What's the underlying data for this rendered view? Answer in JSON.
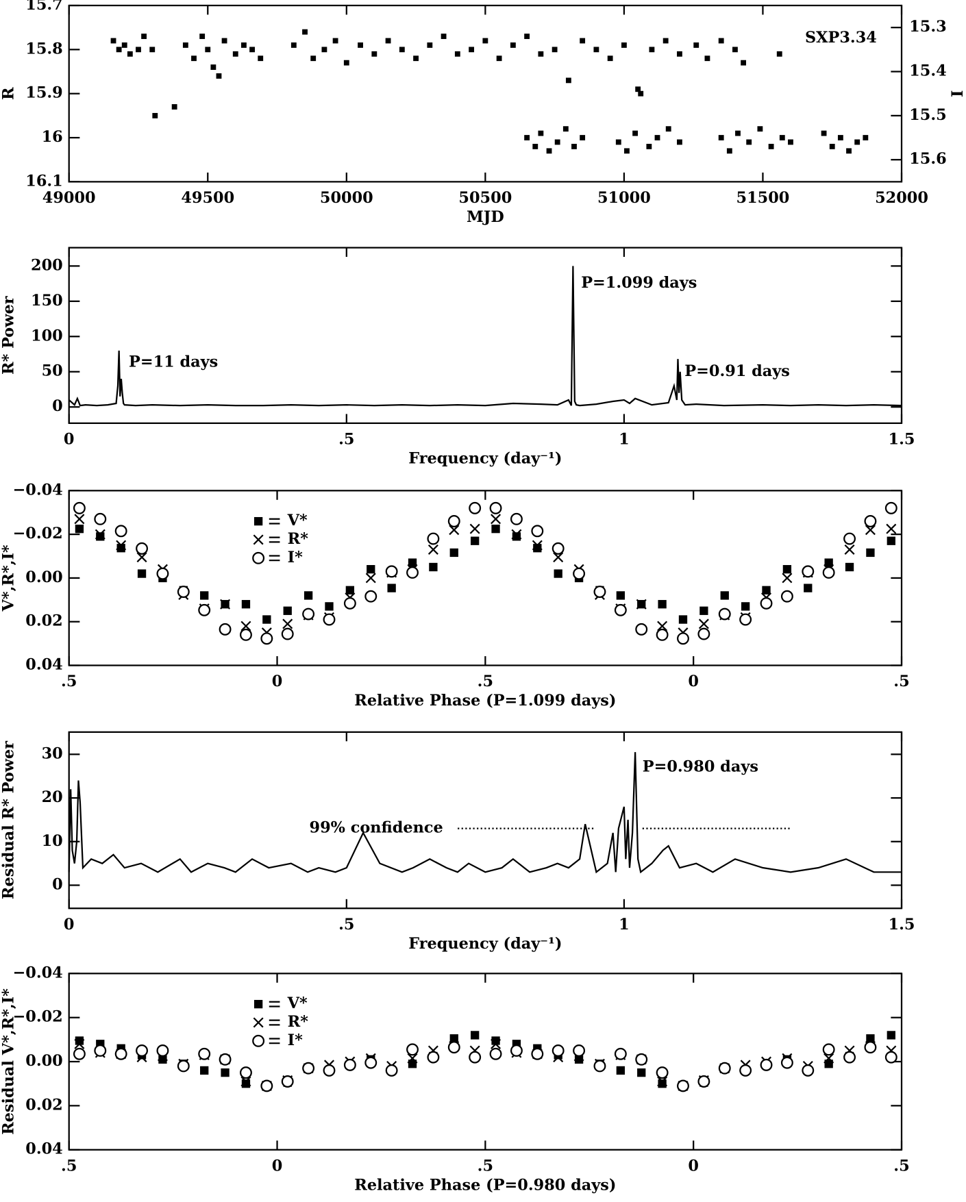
{
  "chart_data": [
    {
      "type": "scatter_time",
      "invert_y": true,
      "xlabel": "MJD",
      "ylabel": "R",
      "y2label": "I",
      "annotations": [
        "SXP3.34"
      ],
      "xlim": [
        49000,
        52000
      ],
      "xticks": [
        49000,
        49500,
        50000,
        50500,
        51000,
        51500,
        52000
      ],
      "ylim": [
        15.7,
        16.1
      ],
      "yticks": [
        15.7,
        15.8,
        15.9,
        16,
        16.1
      ],
      "y2lim": [
        15.25,
        15.65
      ],
      "y2ticks": [
        15.3,
        15.4,
        15.5,
        15.6
      ],
      "series": [
        {
          "color": "#000000",
          "marker": "square",
          "x": [
            49160,
            49180,
            49200,
            49220,
            49250,
            49270,
            49300,
            49310,
            49380,
            49420,
            49450,
            49480,
            49500,
            49520,
            49540,
            49560,
            49600,
            49630,
            49660,
            49690,
            49810,
            49850,
            49880,
            49920,
            49960,
            50000,
            50050,
            50100,
            50150,
            50200,
            50250,
            50300,
            50350,
            50400,
            50450,
            50500,
            50550,
            50600,
            50650,
            50700,
            50750,
            50800,
            50850,
            50900,
            50950,
            51000,
            51050,
            51100,
            51150,
            51200,
            51260,
            51300,
            51350,
            51400,
            51430,
            51560
          ],
          "values": [
            15.78,
            15.8,
            15.79,
            15.81,
            15.8,
            15.77,
            15.8,
            15.95,
            15.93,
            15.79,
            15.82,
            15.77,
            15.8,
            15.84,
            15.86,
            15.78,
            15.81,
            15.79,
            15.8,
            15.82,
            15.79,
            15.76,
            15.82,
            15.8,
            15.78,
            15.83,
            15.79,
            15.81,
            15.78,
            15.8,
            15.82,
            15.79,
            15.77,
            15.81,
            15.8,
            15.78,
            15.82,
            15.79,
            15.77,
            15.81,
            15.8,
            15.87,
            15.78,
            15.8,
            15.82,
            15.79,
            15.89,
            15.8,
            15.78,
            15.81,
            15.79,
            15.82,
            15.78,
            15.8,
            15.83,
            15.81
          ]
        },
        {
          "color": "#000000",
          "marker": "square",
          "axis": "y2",
          "x": [
            50650,
            50680,
            50700,
            50730,
            50760,
            50790,
            50820,
            50850,
            50980,
            51010,
            51040,
            51060,
            51090,
            51120,
            51160,
            51200,
            51350,
            51380,
            51410,
            51450,
            51490,
            51530,
            51570,
            51600,
            51720,
            51750,
            51780,
            51810,
            51840,
            51870
          ],
          "values": [
            15.55,
            15.57,
            15.54,
            15.58,
            15.56,
            15.53,
            15.57,
            15.55,
            15.56,
            15.58,
            15.54,
            15.45,
            15.57,
            15.55,
            15.53,
            15.56,
            15.55,
            15.58,
            15.54,
            15.56,
            15.53,
            15.57,
            15.55,
            15.56,
            15.54,
            15.57,
            15.55,
            15.58,
            15.56,
            15.55
          ]
        }
      ]
    },
    {
      "type": "line",
      "xlabel": "Frequency (day⁻¹)",
      "ylabel": "R* Power",
      "color": "#000000",
      "annotations": [
        "P=11 days",
        "P=1.099 days",
        "P=0.91 days"
      ],
      "xlim": [
        0,
        1.5
      ],
      "xticks": [
        0,
        {
          "value": 0.5,
          "label": ".5"
        },
        1,
        1.5
      ],
      "ylim": [
        -23,
        226
      ],
      "yticks": [
        0,
        50,
        100,
        150,
        200
      ],
      "x": [
        0,
        0.01,
        0.015,
        0.02,
        0.03,
        0.05,
        0.07,
        0.085,
        0.088,
        0.09,
        0.092,
        0.094,
        0.096,
        0.098,
        0.1,
        0.12,
        0.15,
        0.2,
        0.25,
        0.3,
        0.35,
        0.4,
        0.45,
        0.5,
        0.55,
        0.6,
        0.65,
        0.7,
        0.75,
        0.8,
        0.85,
        0.88,
        0.9,
        0.905,
        0.908,
        0.911,
        0.914,
        0.92,
        0.95,
        0.98,
        1.0,
        1.01,
        1.02,
        1.05,
        1.08,
        1.09,
        1.095,
        1.097,
        1.099,
        1.101,
        1.104,
        1.11,
        1.13,
        1.18,
        1.25,
        1.3,
        1.35,
        1.4,
        1.45,
        1.5
      ],
      "values": [
        10,
        3,
        12,
        2,
        3,
        2,
        3,
        5,
        30,
        80,
        15,
        40,
        20,
        5,
        3,
        2,
        3,
        2,
        3,
        2,
        2,
        3,
        2,
        3,
        2,
        3,
        2,
        3,
        2,
        5,
        4,
        3,
        10,
        2,
        200,
        8,
        3,
        2,
        4,
        8,
        10,
        5,
        12,
        3,
        6,
        30,
        10,
        68,
        20,
        50,
        10,
        3,
        4,
        2,
        3,
        2,
        3,
        2,
        3,
        2
      ]
    },
    {
      "type": "phase",
      "invert_y": true,
      "xlabel": "Relative Phase (P=1.099 days)",
      "ylabel": "V*,R*,I*",
      "legend": "upper left",
      "xlim": [
        -0.5,
        1.5
      ],
      "xticks": [
        {
          "value": -0.5,
          "label": ".5"
        },
        0,
        {
          "value": 0.5,
          "label": ".5"
        },
        {
          "value": 1,
          "label": "0"
        },
        {
          "value": 1.5,
          "label": ".5"
        }
      ],
      "ylim": [
        -0.04,
        0.04
      ],
      "yticks": [
        {
          "value": -0.04,
          "label": "−0.04"
        },
        {
          "value": -0.02,
          "label": "−0.02"
        },
        {
          "value": 0,
          "label": "0.00"
        },
        {
          "value": 0.02,
          "label": "0.02"
        },
        {
          "value": 0.04,
          "label": "0.04"
        }
      ],
      "x": [
        -0.475,
        -0.425,
        -0.375,
        -0.325,
        -0.275,
        -0.225,
        -0.175,
        -0.125,
        -0.075,
        -0.025,
        0.025,
        0.075,
        0.125,
        0.175,
        0.225,
        0.275,
        0.325,
        0.375,
        0.425,
        0.475,
        0.525,
        0.575,
        0.625,
        0.675,
        0.725,
        0.775,
        0.825,
        0.875,
        0.925,
        0.975,
        1.025,
        1.075,
        1.125,
        1.175,
        1.225,
        1.275,
        1.325,
        1.375,
        1.425,
        1.475
      ],
      "series": [
        {
          "name": "V*",
          "color": "#000000",
          "marker": "square",
          "values": [
            -0.0225,
            -0.019,
            -0.0137,
            -0.002,
            0,
            0.0056,
            0.008,
            0.012,
            0.012,
            0.019,
            0.015,
            0.008,
            0.013,
            0.0056,
            -0.004,
            0.0046,
            -0.007,
            -0.005,
            -0.0116,
            -0.017,
            -0.0225,
            -0.019,
            -0.0137,
            -0.002,
            0,
            0.0056,
            0.008,
            0.012,
            0.012,
            0.019,
            0.015,
            0.008,
            0.013,
            0.0056,
            -0.004,
            0.0046,
            -0.007,
            -0.005,
            -0.0116,
            -0.017
          ]
        },
        {
          "name": "R*",
          "color": "#000000",
          "marker": "x",
          "values": [
            -0.027,
            -0.02,
            -0.015,
            -0.0095,
            -0.004,
            0.0077,
            0.014,
            0.012,
            0.022,
            0.025,
            0.021,
            0.017,
            0.018,
            0.009,
            0,
            -0.0025,
            -0.004,
            -0.013,
            -0.022,
            -0.0225,
            -0.027,
            -0.02,
            -0.015,
            -0.0095,
            -0.004,
            0.0077,
            0.014,
            0.012,
            0.022,
            0.025,
            0.021,
            0.017,
            0.018,
            0.009,
            0,
            -0.0025,
            -0.004,
            -0.013,
            -0.022,
            -0.0225
          ]
        },
        {
          "name": "I*",
          "color": "#000000",
          "marker": "circle",
          "values": [
            -0.032,
            -0.027,
            -0.0215,
            -0.0135,
            -0.002,
            0.0063,
            0.0147,
            0.0235,
            0.026,
            0.0277,
            0.0256,
            0.0165,
            0.019,
            0.0116,
            0.0084,
            -0.003,
            -0.0025,
            -0.018,
            -0.026,
            -0.032,
            -0.032,
            -0.027,
            -0.0215,
            -0.0135,
            -0.002,
            0.0063,
            0.0147,
            0.0235,
            0.026,
            0.0277,
            0.0256,
            0.0165,
            0.019,
            0.0116,
            0.0084,
            -0.003,
            -0.0025,
            -0.018,
            -0.026,
            -0.032
          ]
        }
      ]
    },
    {
      "type": "line",
      "xlabel": "Frequency (day⁻¹)",
      "ylabel": "Residual R* Power",
      "color": "#000000",
      "annotations": [
        "P=0.980 days"
      ],
      "threshold": 13,
      "threshold_label": "99% confidence",
      "xlim": [
        0,
        1.5
      ],
      "xticks": [
        0,
        {
          "value": 0.5,
          "label": ".5"
        },
        1,
        1.5
      ],
      "ylim": [
        -5.3,
        35.1
      ],
      "yticks": [
        0,
        10,
        20,
        30
      ],
      "x": [
        0,
        0.003,
        0.006,
        0.01,
        0.014,
        0.017,
        0.02,
        0.025,
        0.04,
        0.06,
        0.08,
        0.1,
        0.13,
        0.16,
        0.2,
        0.22,
        0.25,
        0.28,
        0.3,
        0.33,
        0.36,
        0.4,
        0.43,
        0.45,
        0.48,
        0.5,
        0.53,
        0.56,
        0.6,
        0.62,
        0.65,
        0.68,
        0.7,
        0.72,
        0.75,
        0.78,
        0.8,
        0.83,
        0.86,
        0.88,
        0.9,
        0.92,
        0.93,
        0.95,
        0.97,
        0.98,
        0.985,
        0.99,
        1.0,
        1.003,
        1.007,
        1.01,
        1.015,
        1.02,
        1.025,
        1.03,
        1.05,
        1.07,
        1.08,
        1.1,
        1.13,
        1.16,
        1.2,
        1.25,
        1.3,
        1.35,
        1.4,
        1.45,
        1.5
      ],
      "values": [
        3,
        22,
        8,
        5,
        10,
        24,
        19,
        4,
        6,
        5,
        7,
        4,
        5,
        3,
        6,
        3,
        5,
        4,
        3,
        6,
        4,
        5,
        3,
        4,
        3,
        4,
        12,
        5,
        3,
        4,
        6,
        4,
        3,
        5,
        3,
        4,
        6,
        3,
        4,
        5,
        4,
        6,
        14,
        3,
        5,
        12,
        3,
        13,
        18,
        6,
        15,
        4,
        12,
        30.5,
        6,
        3,
        5,
        8,
        9,
        4,
        5,
        3,
        6,
        4,
        3,
        4,
        6,
        3,
        3
      ]
    },
    {
      "type": "phase",
      "invert_y": true,
      "xlabel": "Relative Phase (P=0.980 days)",
      "ylabel": "Residual V*,R*,I*",
      "legend": "upper left",
      "xlim": [
        -0.5,
        1.5
      ],
      "xticks": [
        {
          "value": -0.5,
          "label": ".5"
        },
        0,
        {
          "value": 0.5,
          "label": ".5"
        },
        {
          "value": 1,
          "label": "0"
        },
        {
          "value": 1.5,
          "label": ".5"
        }
      ],
      "ylim": [
        -0.04,
        0.04
      ],
      "yticks": [
        {
          "value": -0.04,
          "label": "−0.04"
        },
        {
          "value": -0.02,
          "label": "−0.02"
        },
        {
          "value": 0,
          "label": "0.00"
        },
        {
          "value": 0.02,
          "label": "0.02"
        },
        {
          "value": 0.04,
          "label": "0.04"
        }
      ],
      "x": [
        -0.475,
        -0.425,
        -0.375,
        -0.325,
        -0.275,
        -0.225,
        -0.175,
        -0.125,
        -0.075,
        -0.025,
        0.025,
        0.075,
        0.125,
        0.175,
        0.225,
        0.275,
        0.325,
        0.375,
        0.425,
        0.475,
        0.525,
        0.575,
        0.625,
        0.675,
        0.725,
        0.775,
        0.825,
        0.875,
        0.925,
        0.975,
        1.025,
        1.075,
        1.125,
        1.175,
        1.225,
        1.275,
        1.325,
        1.375,
        1.425,
        1.475
      ],
      "series": [
        {
          "name": "V*",
          "color": "#000000",
          "marker": "square",
          "values": [
            -0.0095,
            -0.008,
            -0.006,
            -0.003,
            -0.001,
            0.001,
            0.004,
            0.005,
            0.01,
            0.011,
            0.0095,
            0.003,
            0.004,
            0.0015,
            -0.001,
            0.004,
            0.001,
            -0.0025,
            -0.0105,
            -0.012,
            -0.0095,
            -0.008,
            -0.006,
            -0.003,
            -0.001,
            0.001,
            0.004,
            0.005,
            0.01,
            0.011,
            0.0095,
            0.003,
            0.004,
            0.0015,
            -0.001,
            0.004,
            0.001,
            -0.0025,
            -0.0105,
            -0.012
          ]
        },
        {
          "name": "R*",
          "color": "#000000",
          "marker": "x",
          "values": [
            -0.008,
            -0.004,
            -0.0035,
            -0.002,
            -0.0025,
            0.001,
            -0.003,
            -0.001,
            0.009,
            0.011,
            0.0085,
            0.003,
            0.0015,
            0,
            -0.0015,
            0.002,
            -0.0015,
            -0.005,
            -0.007,
            -0.005,
            -0.008,
            -0.004,
            -0.0035,
            -0.002,
            -0.0025,
            0.001,
            -0.003,
            -0.001,
            0.009,
            0.011,
            0.0085,
            0.003,
            0.0015,
            0,
            -0.0015,
            0.002,
            -0.0015,
            -0.005,
            -0.007,
            -0.005
          ]
        },
        {
          "name": "I*",
          "color": "#000000",
          "marker": "circle",
          "values": [
            -0.0035,
            -0.005,
            -0.0035,
            -0.005,
            -0.005,
            0.002,
            -0.0035,
            -0.001,
            0.005,
            0.011,
            0.009,
            0.003,
            0.004,
            0.0015,
            0.0005,
            0.004,
            -0.0055,
            -0.002,
            -0.0065,
            -0.002,
            -0.0035,
            -0.005,
            -0.0035,
            -0.005,
            -0.005,
            0.002,
            -0.0035,
            -0.001,
            0.005,
            0.011,
            0.009,
            0.003,
            0.004,
            0.0015,
            0.0005,
            0.004,
            -0.0055,
            -0.002,
            -0.0065,
            -0.002
          ]
        }
      ]
    }
  ]
}
